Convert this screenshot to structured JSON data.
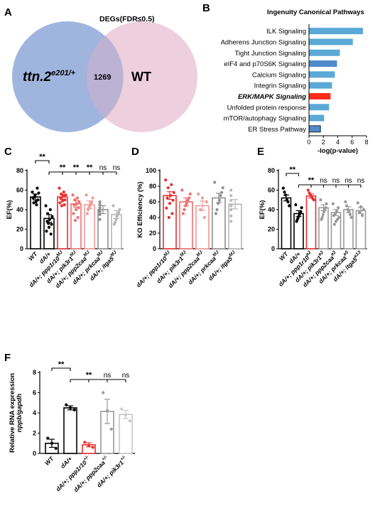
{
  "chart_data": [
    {
      "panel": "A",
      "type": "venn",
      "title": "DEGs(FDR≤0.5)",
      "sets": [
        {
          "name_main": "ttn.2",
          "name_sup": "e201/+",
          "color": "#8fa8d8"
        },
        {
          "name_main": "WT",
          "name_sup": "",
          "color": "#e8bfd2"
        }
      ],
      "overlap": "1269"
    },
    {
      "panel": "B",
      "type": "bar",
      "orientation": "horizontal",
      "title": "Ingenuity Canonical Pathways",
      "xlabel": "-log(p-value)",
      "xlim": [
        0,
        8
      ],
      "xticks": [
        "0",
        "2",
        "4",
        "6",
        "8"
      ],
      "categories": [
        "ILK Signaling",
        "Adherens Junction Signaling",
        "Tight Junction Signaling",
        "eIF4 and p70S6K Signaling",
        "Calcium Signaling",
        "Integrin Signaling",
        "ERK/MAPK Signaling",
        "Unfolded protein response",
        "mTOR/autophagy Signaling",
        "ER Stress Pathway"
      ],
      "highlight": "ERK/MAPK Signaling",
      "values": [
        7.5,
        6.1,
        4.3,
        3.9,
        3.6,
        3.2,
        3.0,
        2.8,
        2.1,
        1.6
      ],
      "colors": [
        "#5aa9d6",
        "#5aa9d6",
        "#5aa9d6",
        "#4f8ac9",
        "#5aa9d6",
        "#5aa9d6",
        "#ff2a1a",
        "#5aa9d6",
        "#5aa9d6",
        "#4f8ac9"
      ]
    },
    {
      "panel": "C",
      "type": "bar",
      "ylabel": "EF(%)",
      "ylim": [
        0,
        80
      ],
      "yticks": [
        "0",
        "20",
        "40",
        "60",
        "80"
      ],
      "categories": [
        {
          "main": "WT",
          "sup": ""
        },
        {
          "main": "dA/+",
          "sup": ""
        },
        {
          "main": "dA/+; ppp1r10",
          "sup": "MJ"
        },
        {
          "main": "dA/+; pik3r1",
          "sup": "MJ"
        },
        {
          "main": "dA/+; ppp2caa",
          "sup": "MJ"
        },
        {
          "main": "dA/+; prkcaa",
          "sup": "MJ"
        },
        {
          "main": "dA/+; itga5",
          "sup": "MJ"
        }
      ],
      "values": [
        53,
        31,
        53,
        46,
        45,
        40,
        35
      ],
      "errors": [
        3,
        4,
        2.5,
        3.5,
        4,
        4,
        4
      ],
      "colors": [
        "#000000",
        "#000000",
        "#e8302f",
        "#ee6f6f",
        "#f09a9a",
        "#8f8f8f",
        "#b8b8b8"
      ],
      "points": [
        [
          58,
          62,
          55,
          52,
          50,
          48,
          47,
          57,
          45,
          53
        ],
        [
          44,
          40,
          36,
          33,
          30,
          28,
          25,
          22,
          18,
          15,
          26
        ],
        [
          62,
          58,
          56,
          55,
          54,
          52,
          50,
          49,
          47,
          45,
          44
        ],
        [
          55,
          52,
          50,
          48,
          46,
          45,
          42,
          40,
          36,
          32,
          29
        ],
        [
          55,
          52,
          48,
          46,
          44,
          42,
          40,
          36
        ],
        [
          48,
          45,
          42,
          40,
          38,
          35,
          30
        ],
        [
          44,
          40,
          37,
          35,
          33,
          30,
          27,
          25
        ]
      ],
      "significance": [
        {
          "text": "**",
          "type": "bracket",
          "from": 0,
          "to": 1
        },
        {
          "text": "**",
          "at": 2
        },
        {
          "text": "**",
          "at": 3
        },
        {
          "text": "**",
          "at": 4
        },
        {
          "text": "ns",
          "at": 5
        },
        {
          "text": "ns",
          "at": 6
        }
      ]
    },
    {
      "panel": "D",
      "type": "bar",
      "ylabel": "KO Efficiency  (%)",
      "ylim": [
        0,
        100
      ],
      "yticks": [
        "0",
        "20",
        "40",
        "60",
        "80",
        "100"
      ],
      "categories": [
        {
          "main": "dA/+; ppp1r10",
          "sup": "MJ"
        },
        {
          "main": "dA/+; pik3r1",
          "sup": "MJ"
        },
        {
          "main": "dA/+; ppp2caa",
          "sup": "MJ"
        },
        {
          "main": "dA/+; prkcaa",
          "sup": "MJ"
        },
        {
          "main": "dA/+; itga5",
          "sup": "MJ"
        }
      ],
      "values": [
        68,
        60,
        55,
        65,
        57
      ],
      "errors": [
        5,
        5,
        6,
        6,
        6
      ],
      "colors": [
        "#e8302f",
        "#ee6f6f",
        "#f09a9a",
        "#8f8f8f",
        "#b8b8b8"
      ],
      "points": [
        [
          88,
          82,
          78,
          72,
          68,
          65,
          62,
          58,
          52,
          45,
          40
        ],
        [
          75,
          70,
          65,
          62,
          58,
          55,
          50,
          45
        ],
        [
          70,
          65,
          60,
          50,
          40
        ],
        [
          85,
          78,
          72,
          68,
          62,
          58,
          50,
          45
        ],
        [
          75,
          68,
          62,
          55,
          50,
          42,
          35
        ]
      ]
    },
    {
      "panel": "E",
      "type": "bar",
      "ylabel": "EF(%)",
      "ylim": [
        0,
        80
      ],
      "yticks": [
        "0",
        "20",
        "40",
        "60",
        "80"
      ],
      "categories": [
        {
          "main": "WT",
          "sup": ""
        },
        {
          "main": "dA/+",
          "sup": ""
        },
        {
          "main": "dA/+; ppp1r10",
          "sup": "e2"
        },
        {
          "main": "dA/+; pik3r1",
          "sup": "e2"
        },
        {
          "main": "dA/+; ppp2caa",
          "sup": "e2"
        },
        {
          "main": "dA/+; prkcaa",
          "sup": "e5"
        },
        {
          "main": "dA/+; itga5",
          "sup": "e13"
        }
      ],
      "values": [
        52,
        36,
        54,
        42,
        37,
        40,
        39
      ],
      "errors": [
        3,
        3,
        2,
        3,
        3,
        3,
        3
      ],
      "colors": [
        "#000000",
        "#000000",
        "#e8302f",
        "#9a9a9a",
        "#9a9a9a",
        "#9a9a9a",
        "#9a9a9a"
      ],
      "points": [
        [
          62,
          58,
          55,
          50,
          48,
          44
        ],
        [
          45,
          42,
          38,
          36,
          34,
          32,
          30,
          28
        ],
        [
          60,
          57,
          55,
          53,
          51,
          50
        ],
        [
          50,
          46,
          42,
          40,
          38,
          35,
          32,
          30
        ],
        [
          46,
          42,
          38,
          36,
          34,
          32,
          30,
          28,
          25
        ],
        [
          48,
          44,
          40,
          38,
          35,
          32
        ],
        [
          47,
          43,
          40,
          37,
          34
        ]
      ],
      "significance": [
        {
          "text": "**",
          "type": "bracket",
          "from": 0,
          "to": 1
        },
        {
          "text": "**",
          "at": 2
        },
        {
          "text": "ns",
          "at": 3
        },
        {
          "text": "ns",
          "at": 4
        },
        {
          "text": "ns",
          "at": 5
        },
        {
          "text": "ns",
          "at": 6
        }
      ]
    },
    {
      "panel": "F",
      "type": "bar",
      "ylabel_1": "Relative RNA expression",
      "ylabel_2": "nppb/gapdh",
      "ylim": [
        0,
        8
      ],
      "yticks": [
        "0",
        "2",
        "4",
        "6",
        "8"
      ],
      "categories": [
        {
          "main": "WT",
          "sup": ""
        },
        {
          "main": "dA/+",
          "sup": ""
        },
        {
          "main": "dA/+; ppp1r10",
          "sup": "+/-"
        },
        {
          "main": "dA/+; ppp2caa",
          "sup": "+/-"
        },
        {
          "main": "dA/+; pik3r1",
          "sup": "+/-"
        }
      ],
      "values": [
        1.0,
        4.5,
        0.85,
        4.15,
        3.85
      ],
      "errors": [
        0.4,
        0.2,
        0.2,
        1.2,
        0.4
      ],
      "colors": [
        "#000000",
        "#000000",
        "#e8302f",
        "#9a9a9a",
        "#c8c8c8"
      ],
      "points": [
        [
          1.5,
          1.0,
          0.5
        ],
        [
          4.8,
          4.5,
          4.3
        ],
        [
          1.1,
          0.8,
          0.6
        ],
        [
          6.0,
          4.2,
          2.4
        ],
        [
          4.4,
          3.8,
          3.2
        ]
      ],
      "significance": [
        {
          "text": "**",
          "type": "bracket",
          "from": 0,
          "to": 1
        },
        {
          "text": "**",
          "at": 2
        },
        {
          "text": "ns",
          "at": 3
        },
        {
          "text": "ns",
          "at": 4
        }
      ]
    }
  ]
}
